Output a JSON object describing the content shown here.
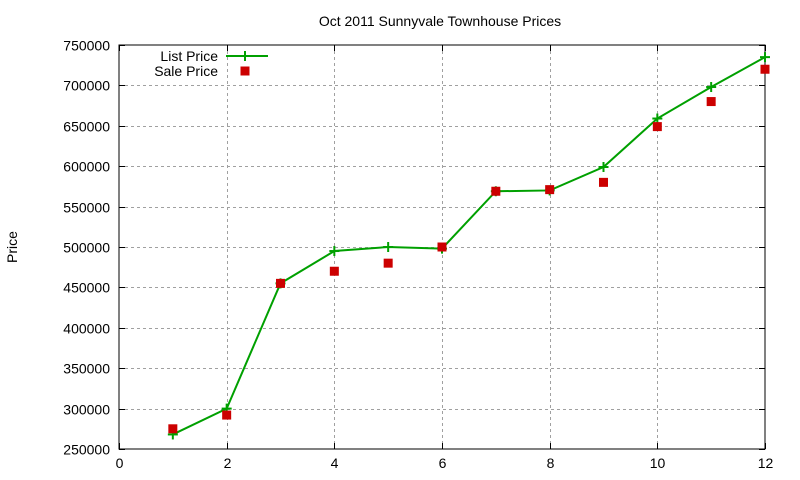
{
  "chart_data": {
    "type": "line",
    "title": "Oct 2011 Sunnyvale Townhouse Prices",
    "xlabel": "",
    "ylabel": "Price",
    "xlim": [
      0,
      12
    ],
    "ylim": [
      250000,
      750000
    ],
    "x_ticks": [
      0,
      2,
      4,
      6,
      8,
      10,
      12
    ],
    "y_ticks": [
      250000,
      300000,
      350000,
      400000,
      450000,
      500000,
      550000,
      600000,
      650000,
      700000,
      750000
    ],
    "grid": true,
    "legend_position": "top-left",
    "x": [
      1,
      2,
      3,
      4,
      5,
      6,
      7,
      8,
      9,
      10,
      11,
      12
    ],
    "series": [
      {
        "name": "List Price",
        "style": "linespoints",
        "marker": "plus",
        "color": "#00a000",
        "values": [
          268000,
          300000,
          455000,
          495000,
          500000,
          498000,
          569000,
          570000,
          599000,
          659000,
          698000,
          735000
        ]
      },
      {
        "name": "Sale Price",
        "style": "points",
        "marker": "square",
        "color": "#cc0000",
        "values": [
          275000,
          292000,
          455000,
          470000,
          480000,
          500000,
          569000,
          571000,
          580000,
          649000,
          680000,
          720000
        ]
      }
    ]
  }
}
